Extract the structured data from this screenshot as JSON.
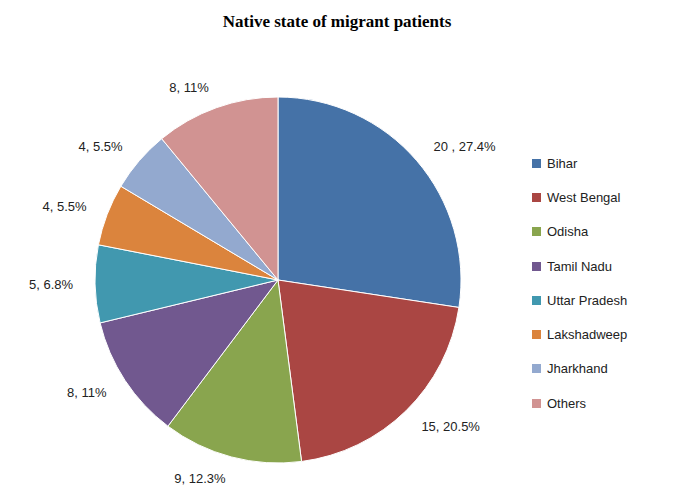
{
  "chart_data": {
    "type": "pie",
    "title": "Native state of migrant  patients",
    "categories": [
      "Bihar",
      "West Bengal",
      "Odisha",
      "Tamil Nadu",
      "Uttar Pradesh",
      "Lakshadweep",
      "Jharkhand",
      "Others"
    ],
    "values": [
      20,
      15,
      9,
      8,
      5,
      4,
      4,
      8
    ],
    "value_labels": [
      "20 , 27.4%",
      "15, 20.5%",
      "9, 12.3%",
      "8, 11%",
      "5, 6.8%",
      "4, 5.5%",
      "4, 5.5%",
      "8, 11%"
    ],
    "colors": [
      "#4572A7",
      "#AA4643",
      "#89A54E",
      "#71588F",
      "#4198AF",
      "#DB843D",
      "#93A9CF",
      "#D19392"
    ],
    "data_labels": true,
    "legend": "right"
  }
}
